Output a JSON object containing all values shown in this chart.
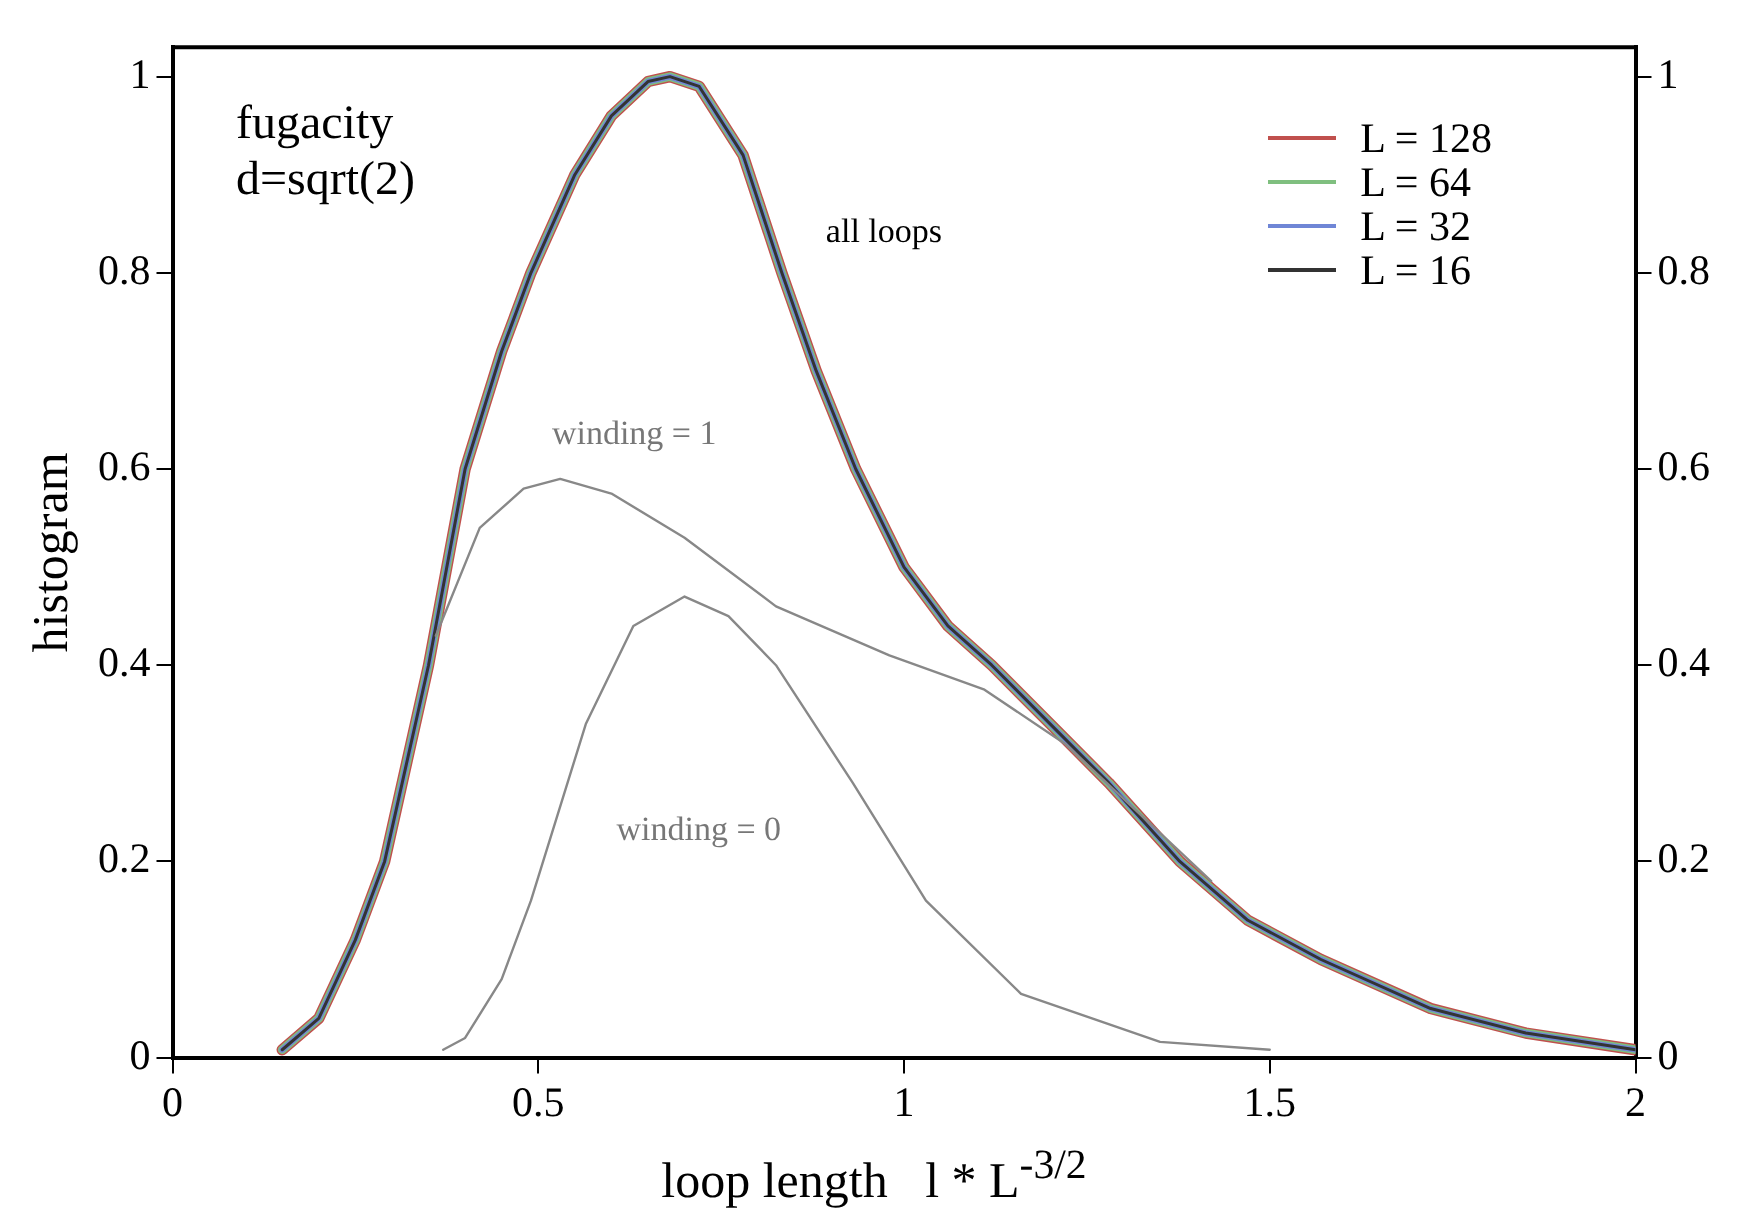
{
  "chart_data": {
    "type": "line",
    "xlabel": "loop length   l * L$^{-3/2}$",
    "ylabel": "histogram",
    "x": [
      0.15,
      0.2,
      0.25,
      0.29,
      0.35,
      0.4,
      0.45,
      0.49,
      0.55,
      0.6,
      0.65,
      0.68,
      0.72,
      0.78,
      0.833,
      0.88,
      0.934,
      1.0,
      1.06,
      1.12,
      1.2,
      1.28,
      1.377,
      1.47,
      1.57,
      1.72,
      1.85,
      2.0
    ],
    "series": [
      {
        "name": "L = 128",
        "color": "#c0504d",
        "values": [
          0.008,
          0.04,
          0.12,
          0.2,
          0.4,
          0.6,
          0.72,
          0.8,
          0.9,
          0.96,
          0.995,
          1.0,
          0.99,
          0.92,
          0.8,
          0.7,
          0.6,
          0.5,
          0.44,
          0.4,
          0.34,
          0.28,
          0.2,
          0.14,
          0.1,
          0.05,
          0.025,
          0.008
        ]
      },
      {
        "name": "L = 64",
        "color": "#7fbf7f",
        "values": [
          0.008,
          0.04,
          0.12,
          0.2,
          0.4,
          0.6,
          0.72,
          0.8,
          0.9,
          0.96,
          0.995,
          1.0,
          0.99,
          0.92,
          0.8,
          0.7,
          0.6,
          0.5,
          0.44,
          0.4,
          0.34,
          0.28,
          0.2,
          0.14,
          0.1,
          0.05,
          0.025,
          0.008
        ]
      },
      {
        "name": "L = 32",
        "color": "#6f86d6",
        "values": [
          0.008,
          0.04,
          0.12,
          0.2,
          0.4,
          0.6,
          0.72,
          0.8,
          0.9,
          0.96,
          0.995,
          1.0,
          0.99,
          0.92,
          0.8,
          0.7,
          0.6,
          0.5,
          0.44,
          0.4,
          0.34,
          0.28,
          0.2,
          0.14,
          0.1,
          0.05,
          0.025,
          0.008
        ]
      },
      {
        "name": "L = 16",
        "color": "#333333",
        "values": [
          0.008,
          0.04,
          0.12,
          0.2,
          0.4,
          0.6,
          0.72,
          0.8,
          0.9,
          0.96,
          0.995,
          1.0,
          0.99,
          0.92,
          0.8,
          0.7,
          0.6,
          0.5,
          0.44,
          0.4,
          0.34,
          0.28,
          0.2,
          0.14,
          0.1,
          0.05,
          0.025,
          0.008
        ]
      },
      {
        "color": "#888888",
        "x": [
          0.36,
          0.42,
          0.48,
          0.53,
          0.6,
          0.7,
          0.825,
          0.98,
          1.11,
          1.22,
          1.42
        ],
        "values": [
          0.43,
          0.54,
          0.58,
          0.59,
          0.575,
          0.53,
          0.46,
          0.41,
          0.375,
          0.32,
          0.18
        ]
      },
      {
        "color": "#888888",
        "x": [
          0.37,
          0.4,
          0.45,
          0.49,
          0.565,
          0.63,
          0.7,
          0.76,
          0.825,
          0.93,
          1.03,
          1.16,
          1.35,
          1.5
        ],
        "values": [
          0.008,
          0.02,
          0.08,
          0.16,
          0.34,
          0.44,
          0.47,
          0.45,
          0.4,
          0.28,
          0.16,
          0.065,
          0.016,
          0.008
        ]
      }
    ],
    "annotations": [
      "fugacity",
      "d=sqrt(2)",
      {
        "text": "all loops",
        "x": 0.833,
        "y": 0.8
      },
      {
        "text": "winding = 1",
        "x": 0.53,
        "y": 0.59
      },
      {
        "text": "winding = 0",
        "x": 0.93,
        "y": 0.28
      }
    ],
    "xlim": [
      0,
      2
    ],
    "xticks": [
      0,
      0.5,
      1,
      1.5,
      2
    ],
    "ylim": [
      0,
      1.03
    ],
    "yticks": [
      0,
      0.2,
      0.4,
      0.6,
      0.8,
      1
    ],
    "y2lim": [
      0,
      1.03
    ],
    "y2ticks": [
      0,
      0.2,
      0.4,
      0.6,
      0.8,
      1
    ],
    "grid": false,
    "legend": "top right",
    "marker": "none",
    "line_style": "solid"
  }
}
